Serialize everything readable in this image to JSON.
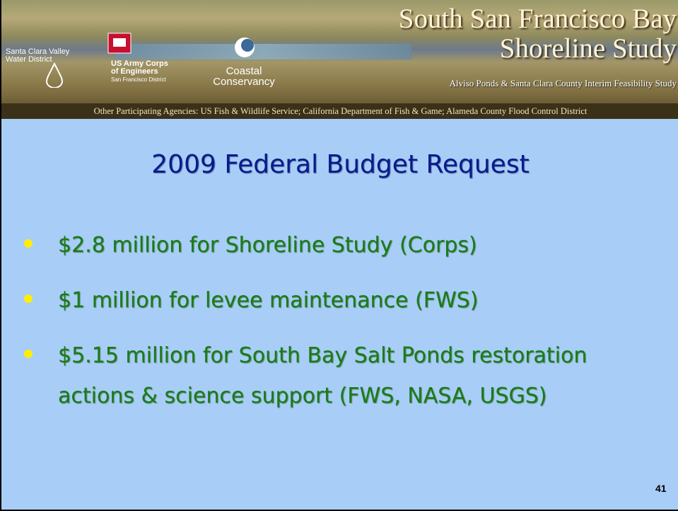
{
  "header": {
    "title_line1": "South San Francisco Bay",
    "title_line2": "Shoreline Study",
    "subtitle": "Alviso Ponds & Santa Clara County Interim Feasibility Study",
    "logos": [
      [
        "Santa Clara Valley",
        "Water District"
      ],
      [
        "US Army Corps",
        "of Engineers",
        "San Francisco District"
      ],
      [
        "Coastal",
        "Conservancy"
      ]
    ],
    "agencies": "Other Participating Agencies: US Fish & Wildlife Service; California Department of Fish & Game; Alameda County Flood Control District"
  },
  "slide": {
    "title": "2009 Federal Budget Request",
    "bullets": [
      "$2.8 million for Shoreline Study (Corps)",
      "$1 million for levee maintenance (FWS)",
      "$5.15 million for South Bay Salt Ponds restoration actions & science support (FWS, NASA, USGS)"
    ],
    "page_number": "41"
  }
}
